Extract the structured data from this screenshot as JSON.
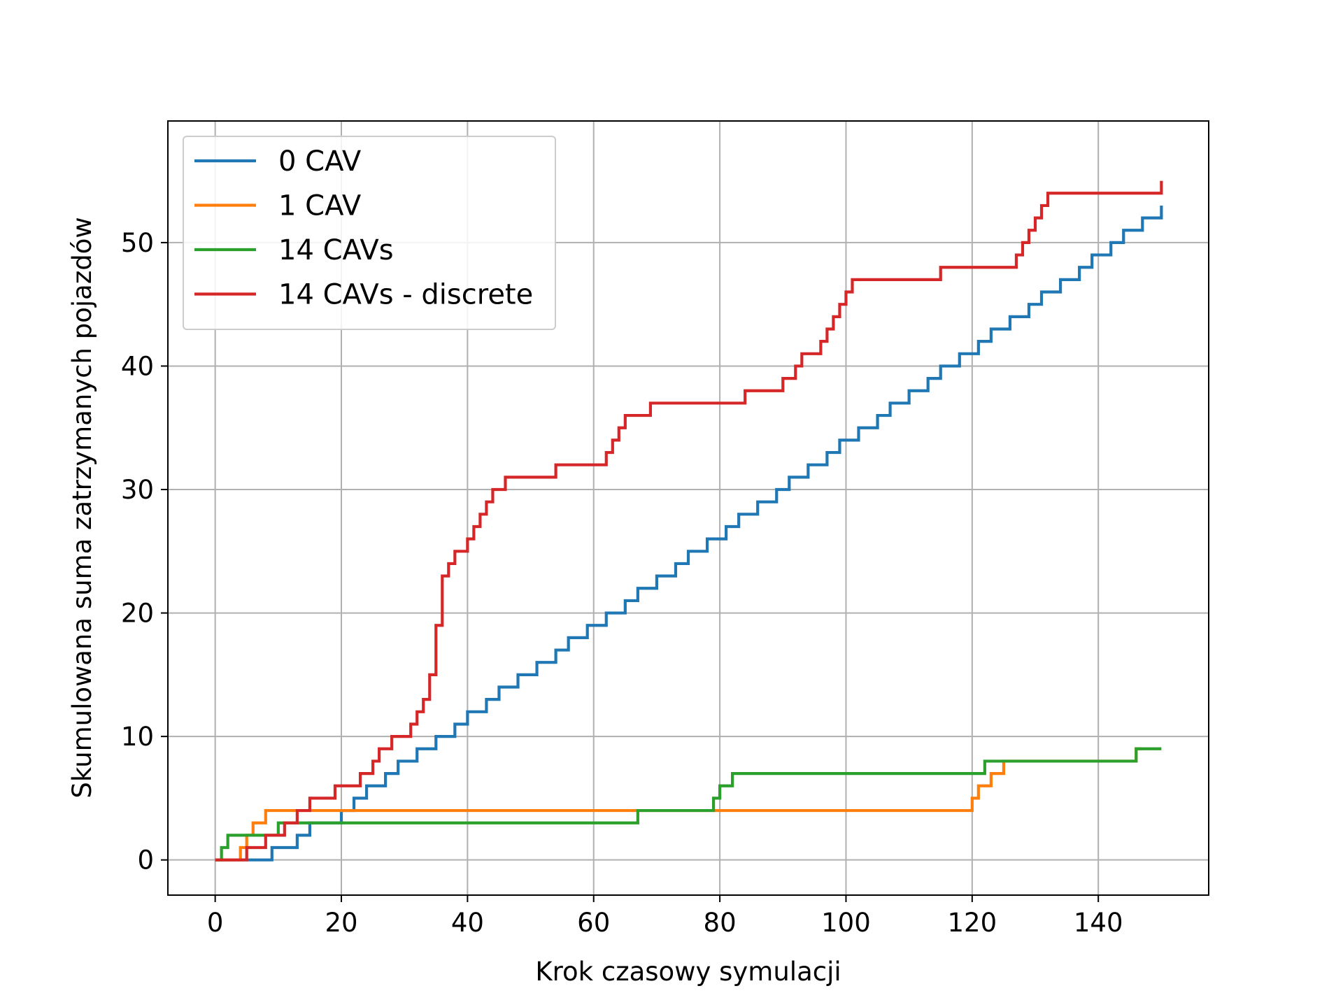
{
  "chart_data": {
    "type": "line",
    "title": "",
    "xlabel": "Krok czasowy symulacji",
    "ylabel": "Skumulowana suma zatrzymanych pojazdów",
    "xlim": [
      -7.5,
      157.5
    ],
    "ylim": [
      -2.85,
      59.85
    ],
    "xticks": [
      0,
      20,
      40,
      60,
      80,
      100,
      120,
      140
    ],
    "yticks": [
      0,
      10,
      20,
      30,
      40,
      50
    ],
    "grid": true,
    "legend_position": "upper-left",
    "step": "post",
    "series": [
      {
        "name": "0 CAV",
        "color": "#1f77b4",
        "x": [
          0,
          9,
          13,
          15,
          20,
          22,
          24,
          27,
          29,
          32,
          35,
          38,
          40,
          43,
          45,
          48,
          51,
          54,
          56,
          59,
          62,
          65,
          67,
          70,
          73,
          75,
          78,
          81,
          83,
          86,
          89,
          91,
          94,
          97,
          99,
          102,
          105,
          107,
          110,
          113,
          115,
          118,
          121,
          123,
          126,
          129,
          131,
          134,
          137,
          139,
          142,
          144,
          147,
          150
        ],
        "y": [
          0,
          1,
          2,
          3,
          4,
          5,
          6,
          7,
          8,
          9,
          10,
          11,
          12,
          13,
          14,
          15,
          16,
          17,
          18,
          19,
          20,
          21,
          22,
          23,
          24,
          25,
          26,
          27,
          28,
          29,
          30,
          31,
          32,
          33,
          34,
          35,
          36,
          37,
          38,
          39,
          40,
          41,
          42,
          43,
          44,
          45,
          46,
          47,
          48,
          49,
          50,
          51,
          52,
          53
        ]
      },
      {
        "name": "1 CAV",
        "color": "#ff7f0e",
        "x": [
          0,
          4,
          5,
          6,
          8,
          66,
          120,
          121,
          123,
          125,
          128,
          146,
          147
        ],
        "y": [
          0,
          1,
          2,
          3,
          4,
          4,
          5,
          6,
          7,
          8,
          8,
          9,
          9
        ]
      },
      {
        "name": "14 CAVs",
        "color": "#2ca02c",
        "x": [
          0,
          1,
          2,
          10,
          67,
          79,
          80,
          82,
          122,
          146,
          150
        ],
        "y": [
          0,
          1,
          2,
          3,
          4,
          5,
          6,
          7,
          8,
          9,
          9
        ]
      },
      {
        "name": "14 CAVs - discrete",
        "color": "#d62728",
        "x": [
          0,
          5,
          8,
          11,
          13,
          15,
          19,
          23,
          25,
          26,
          28,
          31,
          32,
          33,
          34,
          35,
          36,
          37,
          38,
          40,
          41,
          42,
          43,
          44,
          46,
          54,
          62,
          63,
          64,
          65,
          69,
          84,
          90,
          92,
          93,
          96,
          97,
          98,
          99,
          100,
          101,
          102,
          103,
          115,
          127,
          128,
          129,
          130,
          131,
          132,
          133,
          150
        ],
        "y": [
          0,
          1,
          2,
          3,
          4,
          5,
          6,
          7,
          8,
          9,
          10,
          11,
          12,
          13,
          15,
          19,
          23,
          24,
          25,
          26,
          27,
          28,
          29,
          30,
          31,
          32,
          33,
          34,
          35,
          36,
          37,
          38,
          39,
          40,
          41,
          42,
          43,
          44,
          45,
          46,
          47,
          47,
          47,
          48,
          49,
          50,
          51,
          52,
          53,
          54,
          54,
          55
        ]
      }
    ]
  }
}
